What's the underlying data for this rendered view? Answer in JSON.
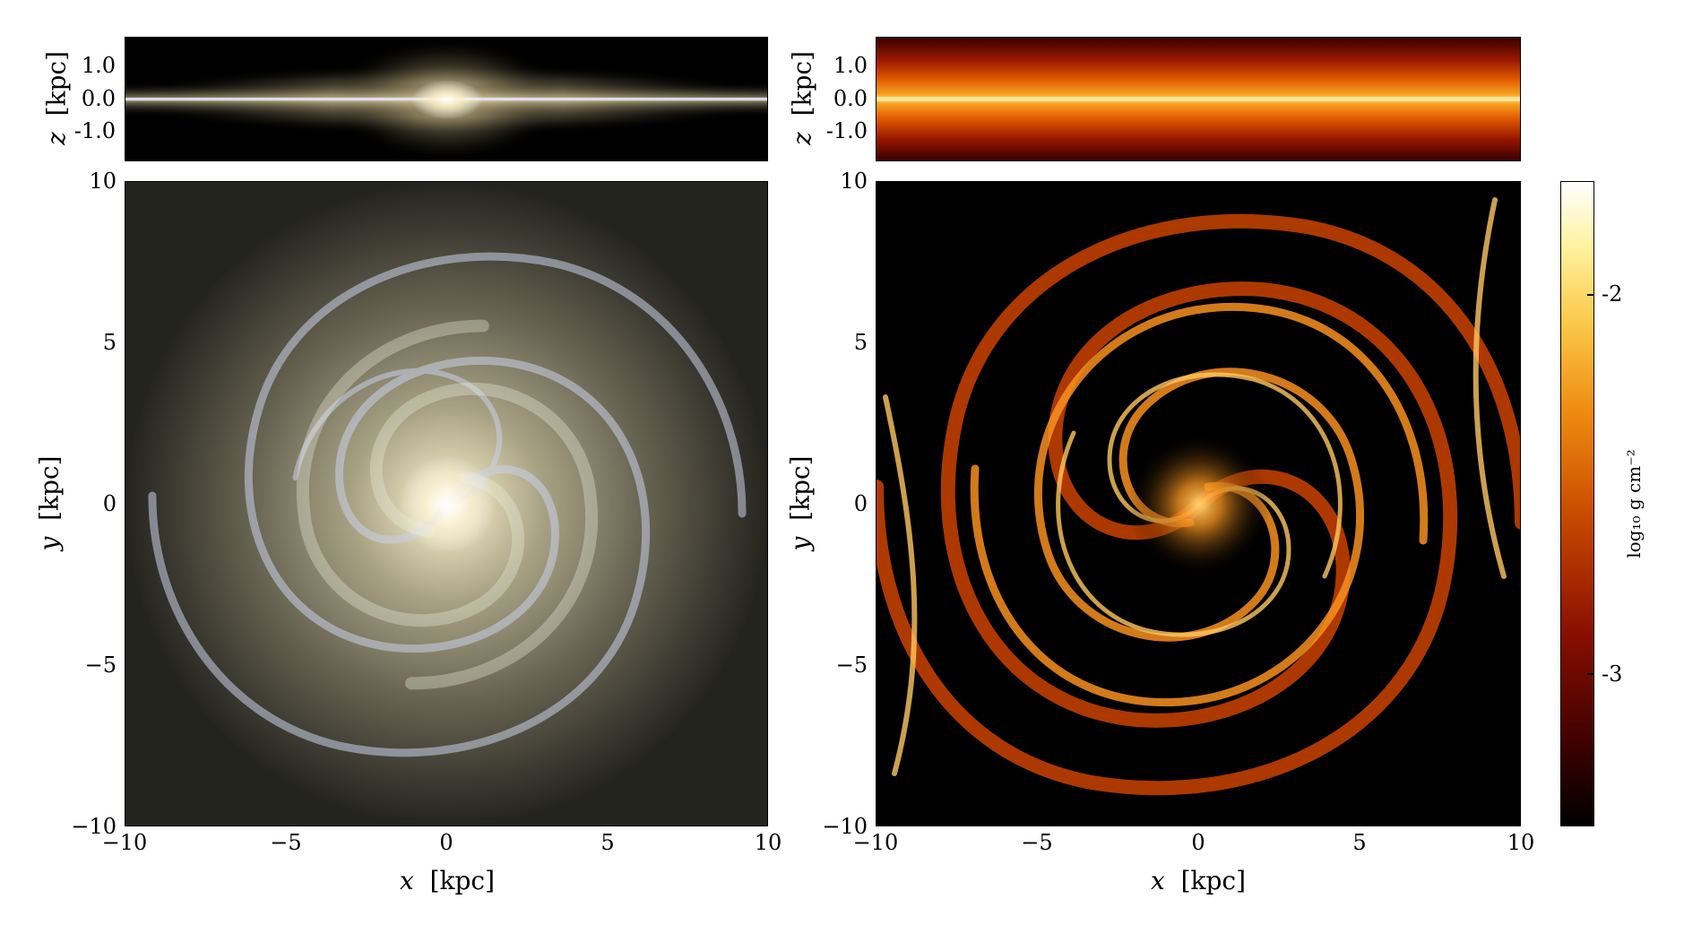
{
  "panels": {
    "stars_edge": {
      "ylabel_var": "z",
      "ylabel_unit": "[kpc]",
      "yticks": [
        "1.0",
        "0.0",
        "-1.0"
      ]
    },
    "gas_edge": {
      "ylabel_var": "z",
      "ylabel_unit": "[kpc]",
      "yticks": [
        "1.0",
        "0.0",
        "-1.0"
      ]
    },
    "stars_face": {
      "xlabel_var": "x",
      "xlabel_unit": "[kpc]",
      "ylabel_var": "y",
      "ylabel_unit": "[kpc]",
      "xticks": [
        "−10",
        "−5",
        "0",
        "5",
        "10"
      ],
      "yticks": [
        "10",
        "5",
        "0",
        "−5",
        "−10"
      ]
    },
    "gas_face": {
      "xlabel_var": "x",
      "xlabel_unit": "[kpc]",
      "ylabel_var": "y",
      "ylabel_unit": "[kpc]",
      "xticks": [
        "−10",
        "−5",
        "0",
        "5",
        "10"
      ],
      "yticks": [
        "10",
        "5",
        "0",
        "−5",
        "−10"
      ]
    }
  },
  "colorbar": {
    "label": "log₁₀ g cm⁻²",
    "ticks": [
      "-2",
      "-3"
    ],
    "tick_values": [
      -2,
      -3
    ],
    "range": [
      -3.4,
      -1.7
    ]
  },
  "colors": {
    "stars_core": "#fffbe8",
    "stars_disk": "#8a8570",
    "star_clusters": "#d8e4ff",
    "gas_dense": "#ffb020",
    "gas_void": "#000000"
  }
}
